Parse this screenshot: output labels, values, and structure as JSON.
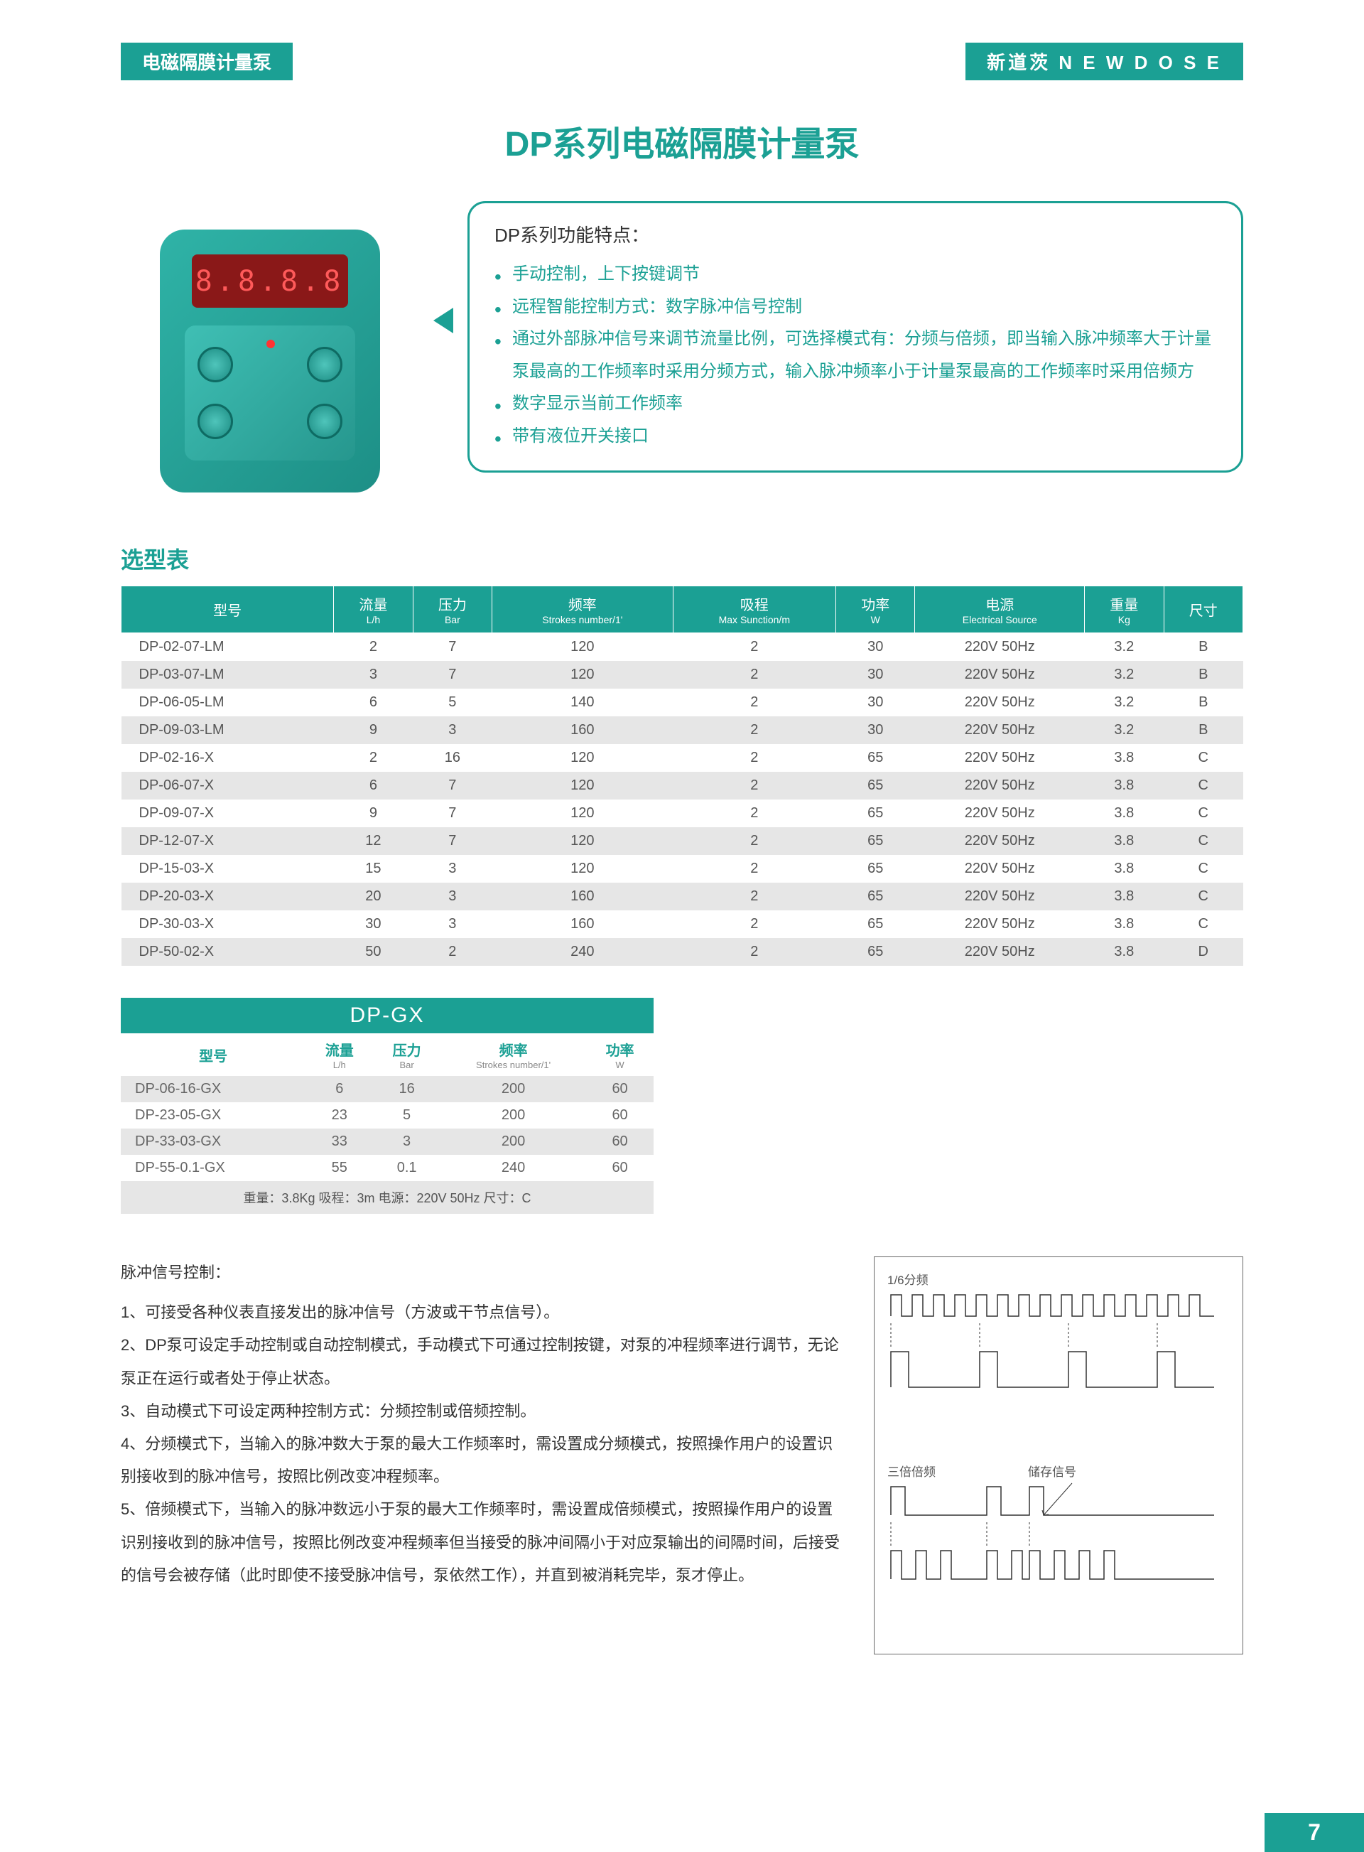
{
  "header": {
    "left": "电磁隔膜计量泵",
    "right": "新道茨 N E W D O S E"
  },
  "main_title": "DP系列电磁隔膜计量泵",
  "pump_display_digits": "8.8.8.8",
  "features": {
    "title": "DP系列功能特点：",
    "items": [
      "手动控制，上下按键调节",
      "远程智能控制方式：数字脉冲信号控制",
      "通过外部脉冲信号来调节流量比例，可选择模式有：分频与倍频，即当输入脉冲频率大于计量泵最高的工作频率时采用分频方式，输入脉冲频率小于计量泵最高的工作频率时采用倍频方",
      "数字显示当前工作频率",
      "带有液位开关接口"
    ]
  },
  "selection_title": "选型表",
  "spec_table": {
    "headers": [
      {
        "main": "型号",
        "sub": ""
      },
      {
        "main": "流量",
        "sub": "L/h"
      },
      {
        "main": "压力",
        "sub": "Bar"
      },
      {
        "main": "频率",
        "sub": "Strokes number/1'"
      },
      {
        "main": "吸程",
        "sub": "Max Sunction/m"
      },
      {
        "main": "功率",
        "sub": "W"
      },
      {
        "main": "电源",
        "sub": "Electrical Source"
      },
      {
        "main": "重量",
        "sub": "Kg"
      },
      {
        "main": "尺寸",
        "sub": ""
      }
    ],
    "rows": [
      [
        "DP-02-07-LM",
        "2",
        "7",
        "120",
        "2",
        "30",
        "220V 50Hz",
        "3.2",
        "B"
      ],
      [
        "DP-03-07-LM",
        "3",
        "7",
        "120",
        "2",
        "30",
        "220V 50Hz",
        "3.2",
        "B"
      ],
      [
        "DP-06-05-LM",
        "6",
        "5",
        "140",
        "2",
        "30",
        "220V 50Hz",
        "3.2",
        "B"
      ],
      [
        "DP-09-03-LM",
        "9",
        "3",
        "160",
        "2",
        "30",
        "220V 50Hz",
        "3.2",
        "B"
      ],
      [
        "DP-02-16-X",
        "2",
        "16",
        "120",
        "2",
        "65",
        "220V 50Hz",
        "3.8",
        "C"
      ],
      [
        "DP-06-07-X",
        "6",
        "7",
        "120",
        "2",
        "65",
        "220V 50Hz",
        "3.8",
        "C"
      ],
      [
        "DP-09-07-X",
        "9",
        "7",
        "120",
        "2",
        "65",
        "220V 50Hz",
        "3.8",
        "C"
      ],
      [
        "DP-12-07-X",
        "12",
        "7",
        "120",
        "2",
        "65",
        "220V 50Hz",
        "3.8",
        "C"
      ],
      [
        "DP-15-03-X",
        "15",
        "3",
        "120",
        "2",
        "65",
        "220V 50Hz",
        "3.8",
        "C"
      ],
      [
        "DP-20-03-X",
        "20",
        "3",
        "160",
        "2",
        "65",
        "220V 50Hz",
        "3.8",
        "C"
      ],
      [
        "DP-30-03-X",
        "30",
        "3",
        "160",
        "2",
        "65",
        "220V 50Hz",
        "3.8",
        "C"
      ],
      [
        "DP-50-02-X",
        "50",
        "2",
        "240",
        "2",
        "65",
        "220V 50Hz",
        "3.8",
        "D"
      ]
    ]
  },
  "gx_table": {
    "title": "DP-GX",
    "headers": [
      {
        "main": "型号",
        "sub": ""
      },
      {
        "main": "流量",
        "sub": "L/h"
      },
      {
        "main": "压力",
        "sub": "Bar"
      },
      {
        "main": "频率",
        "sub": "Strokes number/1'"
      },
      {
        "main": "功率",
        "sub": "W"
      }
    ],
    "rows": [
      [
        "DP-06-16-GX",
        "6",
        "16",
        "200",
        "60"
      ],
      [
        "DP-23-05-GX",
        "23",
        "5",
        "200",
        "60"
      ],
      [
        "DP-33-03-GX",
        "33",
        "3",
        "200",
        "60"
      ],
      [
        "DP-55-0.1-GX",
        "55",
        "0.1",
        "240",
        "60"
      ]
    ],
    "footer": "重量：3.8Kg 吸程：3m 电源：220V 50Hz 尺寸：C"
  },
  "control": {
    "title": "脉冲信号控制：",
    "items": [
      "1、可接受各种仪表直接发出的脉冲信号（方波或干节点信号）。",
      "2、DP泵可设定手动控制或自动控制模式，手动模式下可通过控制按键，对泵的冲程频率进行调节，无论泵正在运行或者处于停止状态。",
      "3、自动模式下可设定两种控制方式：分频控制或倍频控制。",
      "4、分频模式下，当输入的脉冲数大于泵的最大工作频率时，需设置成分频模式，按照操作用户的设置识别接收到的脉冲信号，按照比例改变冲程频率。",
      "5、倍频模式下，当输入的脉冲数远小于泵的最大工作频率时，需设置成倍频模式，按照操作用户的设置识别接收到的脉冲信号，按照比例改变冲程频率但当接受的脉冲间隔小于对应泵输出的间隔时间，后接受的信号会被存储（此时即使不接受脉冲信号，泵依然工作），并直到被消耗完毕，泵才停止。"
    ]
  },
  "diagram_labels": {
    "div_freq": "1/6分频",
    "mult_freq": "三倍倍频",
    "store_sig": "储存信号"
  },
  "page_number": "7",
  "colors": {
    "accent": "#1ba094",
    "row_alt": "#e6e6e6",
    "text": "#333333"
  }
}
